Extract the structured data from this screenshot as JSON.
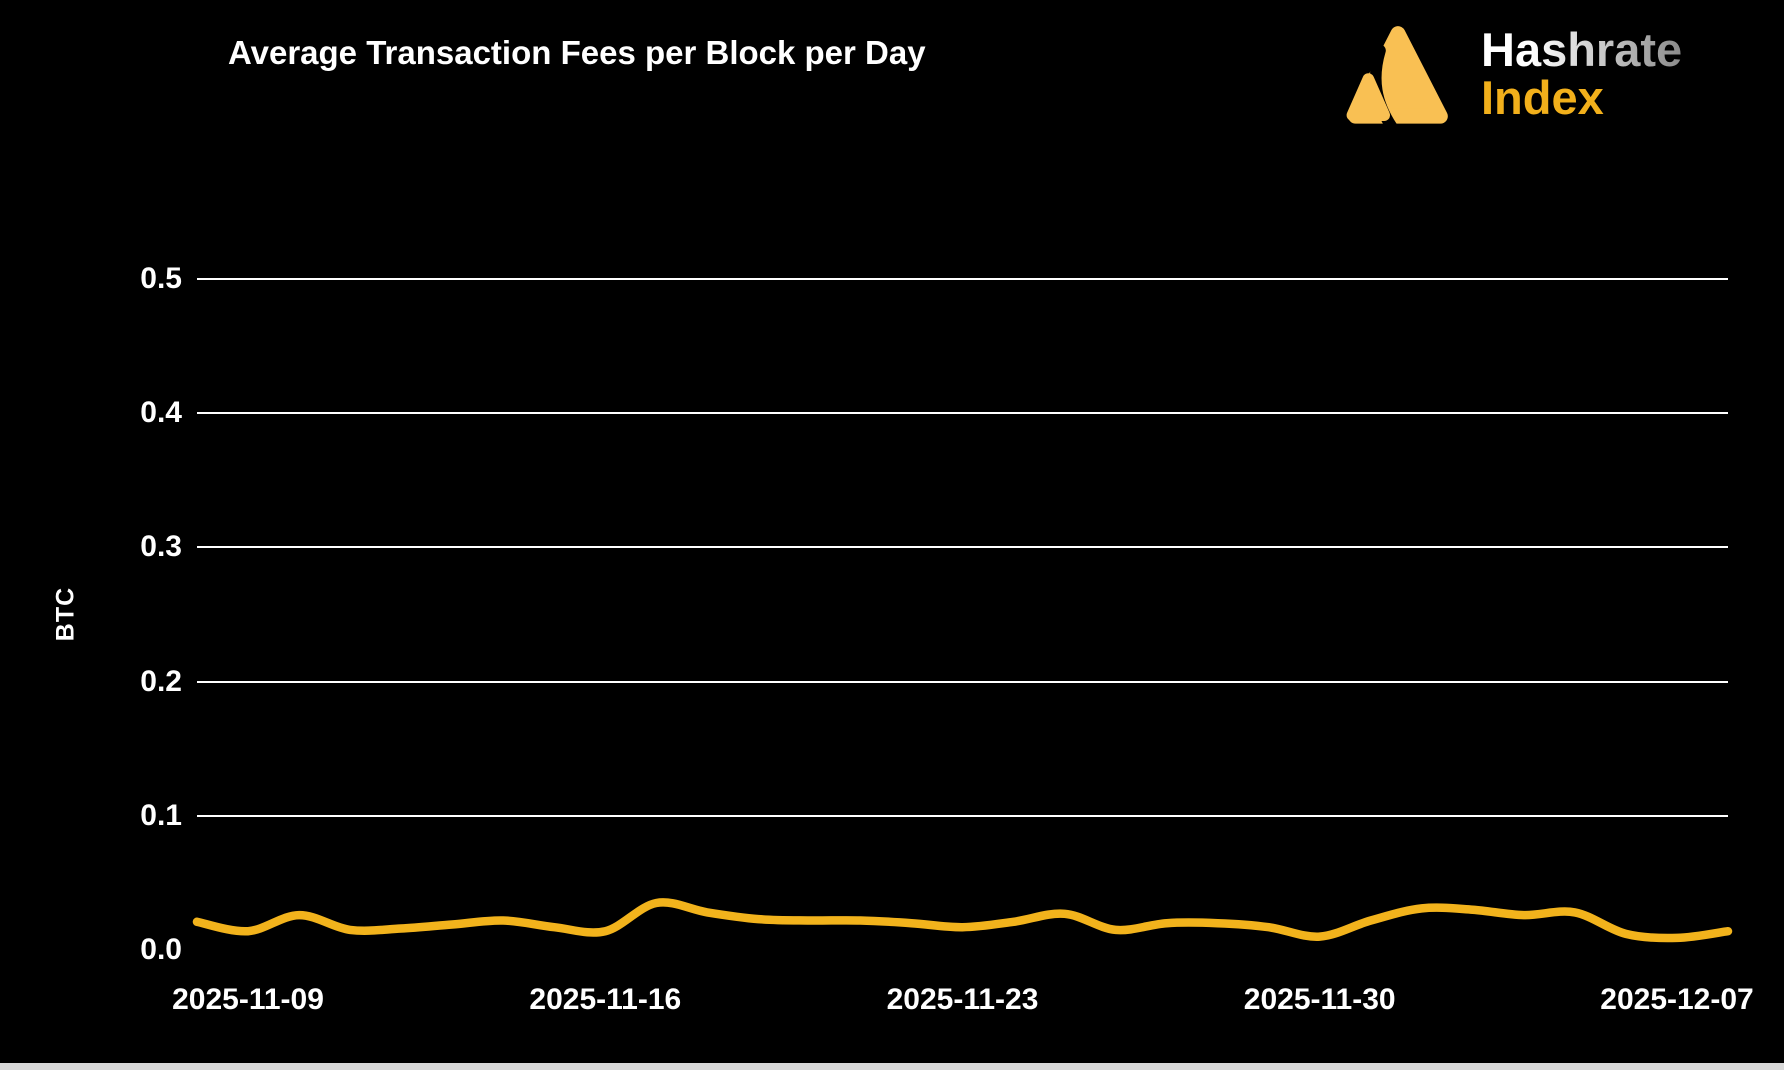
{
  "header": {
    "title": "Average Transaction Fees per Block per Day",
    "logo": {
      "icon": "hashrate-index-triangle-logo",
      "line1": "Hashrate",
      "line2": "Index"
    }
  },
  "colors": {
    "background": "#000000",
    "title_text": "#ffffff",
    "axis_text": "#ffffff",
    "gridline": "#ffffff",
    "series_line": "#F2B31C",
    "logo_triangle": "#F9C053",
    "logo_index_text": "#F2B01B",
    "bottom_edge_bar": "#d9d9d9"
  },
  "chart_data": {
    "type": "line",
    "title": "Average Transaction Fees per Block per Day",
    "xlabel": "",
    "ylabel": "BTC",
    "legend": "none",
    "grid": "horizontal-only, no zero line",
    "smoothing": "spline",
    "ylim": [
      0,
      0.5
    ],
    "yticks": {
      "values": [
        0,
        0.1,
        0.2,
        0.3,
        0.4,
        0.5
      ],
      "labels": [
        "0.0",
        "0.1",
        "0.2",
        "0.3",
        "0.4",
        "0.5"
      ]
    },
    "xticks": [
      "2025-11-09",
      "2025-11-16",
      "2025-11-23",
      "2025-11-30",
      "2025-12-07"
    ],
    "x": [
      "2025-11-08",
      "2025-11-09",
      "2025-11-10",
      "2025-11-11",
      "2025-11-12",
      "2025-11-13",
      "2025-11-14",
      "2025-11-15",
      "2025-11-16",
      "2025-11-17",
      "2025-11-18",
      "2025-11-19",
      "2025-11-20",
      "2025-11-21",
      "2025-11-22",
      "2025-11-23",
      "2025-11-24",
      "2025-11-25",
      "2025-11-26",
      "2025-11-27",
      "2025-11-28",
      "2025-11-29",
      "2025-11-30",
      "2025-12-01",
      "2025-12-02",
      "2025-12-03",
      "2025-12-04",
      "2025-12-05",
      "2025-12-06",
      "2025-12-07",
      "2025-12-08"
    ],
    "series": [
      {
        "name": "Average Transaction Fees per Block per Day",
        "color": "#F2B31C",
        "values": [
          0.021,
          0.014,
          0.026,
          0.015,
          0.016,
          0.019,
          0.022,
          0.017,
          0.014,
          0.035,
          0.028,
          0.023,
          0.022,
          0.022,
          0.02,
          0.017,
          0.021,
          0.027,
          0.015,
          0.02,
          0.02,
          0.017,
          0.01,
          0.022,
          0.031,
          0.03,
          0.026,
          0.028,
          0.012,
          0.009,
          0.014
        ]
      }
    ]
  }
}
